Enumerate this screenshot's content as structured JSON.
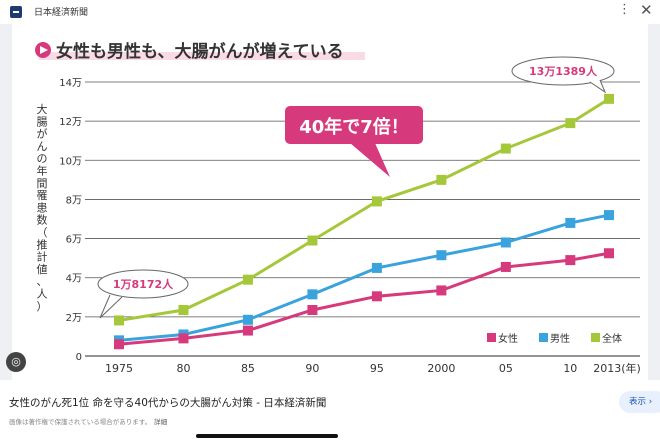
{
  "header": {
    "source": "日本経済新聞",
    "more_icon": "more-vert-icon",
    "close_icon": "close-icon"
  },
  "chart_title": "女性も男性も、大腸がんが増えている",
  "chart_data": {
    "type": "line",
    "title": "女性も男性も、大腸がんが増えている",
    "ylabel": "大腸がんの年間罹患数（推計値、人）",
    "xlabel": "",
    "x_tick_labels": [
      "1975",
      "80",
      "85",
      "90",
      "95",
      "2000",
      "05",
      "10",
      "2013(年)"
    ],
    "x": [
      1975,
      1980,
      1985,
      1990,
      1995,
      2000,
      2005,
      2010,
      2013
    ],
    "y_tick_labels": [
      "0",
      "2万",
      "4万",
      "6万",
      "8万",
      "10万",
      "12万",
      "14万"
    ],
    "ylim": [
      0,
      140000
    ],
    "grid": true,
    "legend_position": "bottom-right",
    "series": [
      {
        "name": "女性",
        "color": "#d63a7c",
        "values": [
          6000,
          9000,
          13000,
          23500,
          30500,
          33500,
          45500,
          49000,
          52500
        ]
      },
      {
        "name": "男性",
        "color": "#3aa3de",
        "values": [
          8000,
          11000,
          18500,
          31500,
          45000,
          51500,
          58000,
          68000,
          72000
        ]
      },
      {
        "name": "全体",
        "color": "#a5c83a",
        "values": [
          18172,
          23500,
          39000,
          59000,
          79000,
          90000,
          106000,
          119000,
          131389
        ]
      }
    ],
    "annotations": [
      "1万8172人",
      "13万1389人",
      "40年で7倍！"
    ]
  },
  "caption": {
    "title": "女性のがん死1位 命を守る40代からの大腸がん対策 - 日本経済新聞",
    "note": "画像は著作権で保護されている場合があります。",
    "note_link": "詳細",
    "show_button": "表示 ›"
  }
}
